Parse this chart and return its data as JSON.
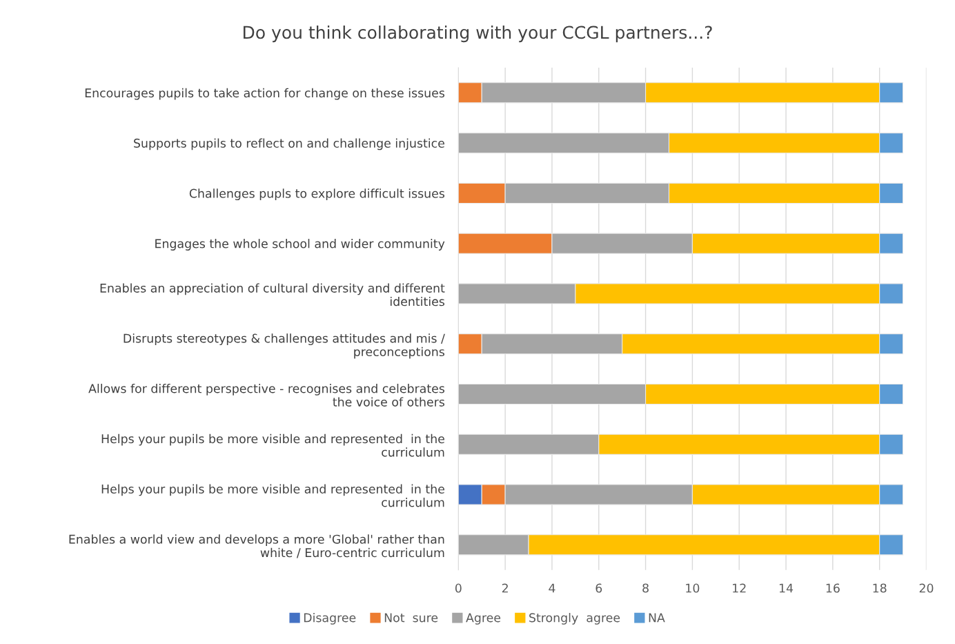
{
  "chart_data": {
    "type": "bar",
    "orientation": "horizontal",
    "stacked": true,
    "title": "Do you think collaborating with your CCGL partners...?",
    "categories": [
      "Encourages pupils to take action for change on these issues",
      "Supports pupils to reflect on and challenge injustice",
      "Challenges pupls to explore difficult issues",
      "Engages the whole school and wider community",
      "Enables an appreciation of cultural diversity and different identities",
      "Disrupts stereotypes & challenges attitudes and mis / preconceptions",
      "Allows for different perspective - recognises and celebrates the voice of others",
      "Helps your pupils be more visible and represented  in the curriculum",
      "Helps your pupils be more visible and represented  in the curriculum",
      "Enables a world view and develops a more 'Global' rather than white / Euro-centric curriculum"
    ],
    "series": [
      {
        "name": "Disagree",
        "color": "#4472c4",
        "values": [
          0,
          0,
          0,
          0,
          0,
          0,
          0,
          0,
          1,
          0
        ]
      },
      {
        "name": "Not  sure",
        "color": "#ed7d31",
        "values": [
          1,
          0,
          2,
          4,
          0,
          1,
          0,
          0,
          1,
          0
        ]
      },
      {
        "name": "Agree",
        "color": "#a5a5a5",
        "values": [
          7,
          9,
          7,
          6,
          5,
          6,
          8,
          6,
          8,
          3
        ]
      },
      {
        "name": "Strongly  agree",
        "color": "#ffc000",
        "values": [
          10,
          9,
          9,
          8,
          13,
          11,
          10,
          12,
          8,
          15
        ]
      },
      {
        "name": "NA",
        "color": "#5b9bd5",
        "values": [
          1,
          1,
          1,
          1,
          1,
          1,
          1,
          1,
          1,
          1
        ]
      }
    ],
    "xlim": [
      0,
      20
    ],
    "xticks": [
      0,
      2,
      4,
      6,
      8,
      10,
      12,
      14,
      16,
      18,
      20
    ],
    "grid": "x",
    "legend": "bottom"
  }
}
